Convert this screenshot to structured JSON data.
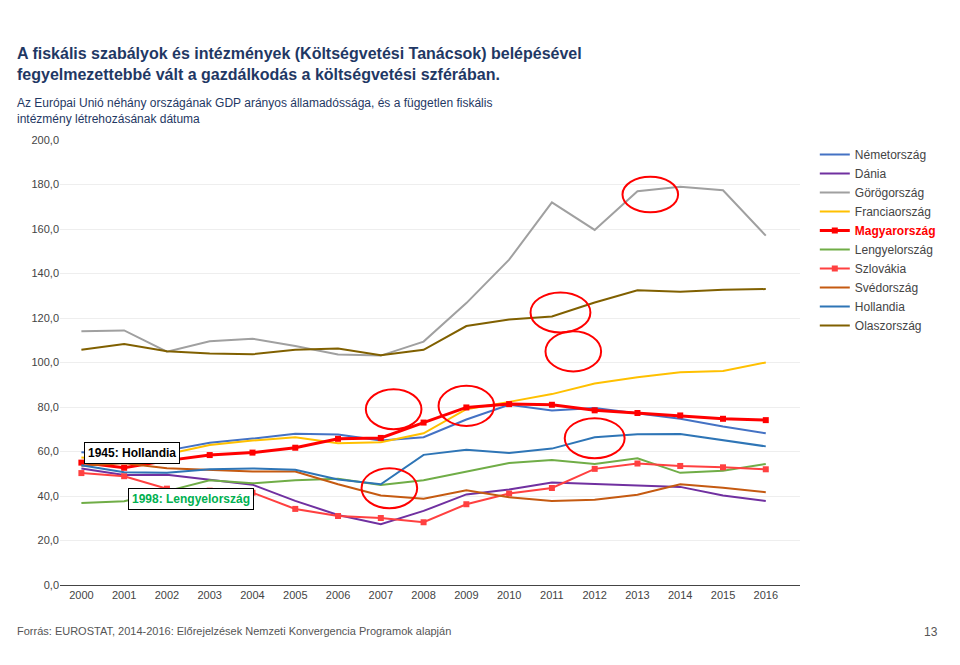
{
  "chart_data": {
    "type": "line",
    "title": "A fiskális szabályok és intézmények (Költségvetési Tanácsok) belépésével\nfegyelmezettebbé vált a gazdálkodás a költségvetési szférában.",
    "subtitle": "Az Európai Unió néhány országának GDP arányos államadóssága, és a független fiskális\nintézmény létrehozásának dátuma",
    "footer": "Forrás: EUROSTAT, 2014-2016: Előrejelzések Nemzeti Konvergencia Programok alapján",
    "page_number": 13,
    "x": [
      2000,
      2001,
      2002,
      2003,
      2004,
      2005,
      2006,
      2007,
      2008,
      2009,
      2010,
      2011,
      2012,
      2013,
      2014,
      2015,
      2016
    ],
    "xlim": [
      1999.5,
      2016.8
    ],
    "xticks": [
      2000,
      2001,
      2002,
      2003,
      2004,
      2005,
      2006,
      2007,
      2008,
      2009,
      2010,
      2011,
      2012,
      2013,
      2014,
      2015,
      2016
    ],
    "ylim": [
      0,
      200
    ],
    "yticks": [
      {
        "value": 0,
        "label": "0,0"
      },
      {
        "value": 20,
        "label": "20,0"
      },
      {
        "value": 40,
        "label": "40,0"
      },
      {
        "value": 60,
        "label": "60,0"
      },
      {
        "value": 80,
        "label": "80,0"
      },
      {
        "value": 100,
        "label": "100,0"
      },
      {
        "value": 120,
        "label": "120,0"
      },
      {
        "value": 140,
        "label": "140,0"
      },
      {
        "value": 160,
        "label": "160,0"
      },
      {
        "value": 180,
        "label": "180,0"
      },
      {
        "value": 200,
        "label": "200,0"
      }
    ],
    "grid": true,
    "legend": "right",
    "series": [
      {
        "name": "Németország",
        "color": "#4472C4",
        "values": [
          59.7,
          58.8,
          60.4,
          63.9,
          65.8,
          68.0,
          67.6,
          65.0,
          66.4,
          74.4,
          81.0,
          78.4,
          79.6,
          77.1,
          74.7,
          71.2,
          68.2
        ]
      },
      {
        "name": "Dánia",
        "color": "#7030A0",
        "values": [
          52.4,
          49.4,
          49.5,
          47.2,
          45.1,
          37.8,
          31.5,
          27.3,
          33.3,
          40.7,
          42.9,
          46.1,
          45.4,
          44.5,
          44.1,
          40.2,
          37.8
        ]
      },
      {
        "name": "Görögország",
        "color": "#A0A0A0",
        "values": [
          114.0,
          114.4,
          104.9,
          109.5,
          110.7,
          107.4,
          103.6,
          103.1,
          109.4,
          126.7,
          146.2,
          172.0,
          159.6,
          177.0,
          179.0,
          177.4,
          157.0
        ]
      },
      {
        "name": "Franciaország",
        "color": "#FFC000",
        "values": [
          57.3,
          55.9,
          58.8,
          62.9,
          64.9,
          66.4,
          63.7,
          64.2,
          68.2,
          79.0,
          82.3,
          85.8,
          90.6,
          93.4,
          95.6,
          96.2,
          100.0
        ]
      },
      {
        "name": "Magyarország",
        "color": "#FF0000",
        "marker": "square",
        "highlight": true,
        "values": [
          55.0,
          52.7,
          55.9,
          58.4,
          59.5,
          61.7,
          65.7,
          66.1,
          73.0,
          79.8,
          81.3,
          81.0,
          78.5,
          77.3,
          76.2,
          74.7,
          74.1
        ]
      },
      {
        "name": "Lengyelország",
        "color": "#70AD47",
        "values": [
          36.8,
          37.6,
          42.2,
          47.1,
          45.7,
          47.1,
          47.7,
          45.0,
          47.1,
          50.9,
          54.8,
          56.2,
          54.4,
          57.0,
          50.4,
          51.3,
          54.4
        ]
      },
      {
        "name": "Szlovákia",
        "color": "#FF4040",
        "marker": "square",
        "values": [
          50.3,
          48.9,
          43.3,
          42.4,
          41.5,
          34.2,
          31.0,
          30.1,
          28.2,
          36.3,
          41.1,
          43.6,
          52.2,
          54.6,
          53.5,
          52.9,
          52.0
        ]
      },
      {
        "name": "Svédország",
        "color": "#C55A11",
        "values": [
          53.6,
          54.7,
          52.5,
          51.7,
          51.0,
          51.0,
          45.3,
          40.2,
          38.8,
          42.6,
          39.4,
          37.8,
          38.3,
          40.6,
          45.3,
          43.7,
          41.7
        ]
      },
      {
        "name": "Hollandia",
        "color": "#2E75B6",
        "values": [
          53.8,
          50.7,
          50.5,
          52.0,
          52.4,
          51.8,
          47.4,
          45.3,
          58.5,
          60.8,
          59.3,
          61.3,
          66.4,
          67.7,
          67.9,
          65.1,
          62.3
        ]
      },
      {
        "name": "Olaszország",
        "color": "#806000",
        "values": [
          105.7,
          108.3,
          105.1,
          104.1,
          103.7,
          105.7,
          106.3,
          103.3,
          105.7,
          116.4,
          119.3,
          120.7,
          127.0,
          132.5,
          131.8,
          132.7,
          133.0
        ]
      }
    ],
    "annotations": [
      {
        "text": "1945: Hollandia",
        "x": 2000.05,
        "y": 54.5,
        "color": "#000000"
      },
      {
        "text": "1998: Lengyelország",
        "x": 2001.1,
        "y": 33.5,
        "color": "#00B050"
      }
    ],
    "ellipse_color": "#FF0000",
    "ellipses": [
      {
        "cx": 2007.3,
        "cy": 79.0,
        "rx": 0.65,
        "ry": 9
      },
      {
        "cx": 2009.0,
        "cy": 80.5,
        "rx": 0.65,
        "ry": 9
      },
      {
        "cx": 2011.2,
        "cy": 122.5,
        "rx": 0.7,
        "ry": 9
      },
      {
        "cx": 2011.5,
        "cy": 105.0,
        "rx": 0.65,
        "ry": 9
      },
      {
        "cx": 2012.0,
        "cy": 66.0,
        "rx": 0.7,
        "ry": 9
      },
      {
        "cx": 2013.3,
        "cy": 175.5,
        "rx": 0.65,
        "ry": 8
      },
      {
        "cx": 2007.2,
        "cy": 43.5,
        "rx": 0.65,
        "ry": 9
      }
    ]
  }
}
